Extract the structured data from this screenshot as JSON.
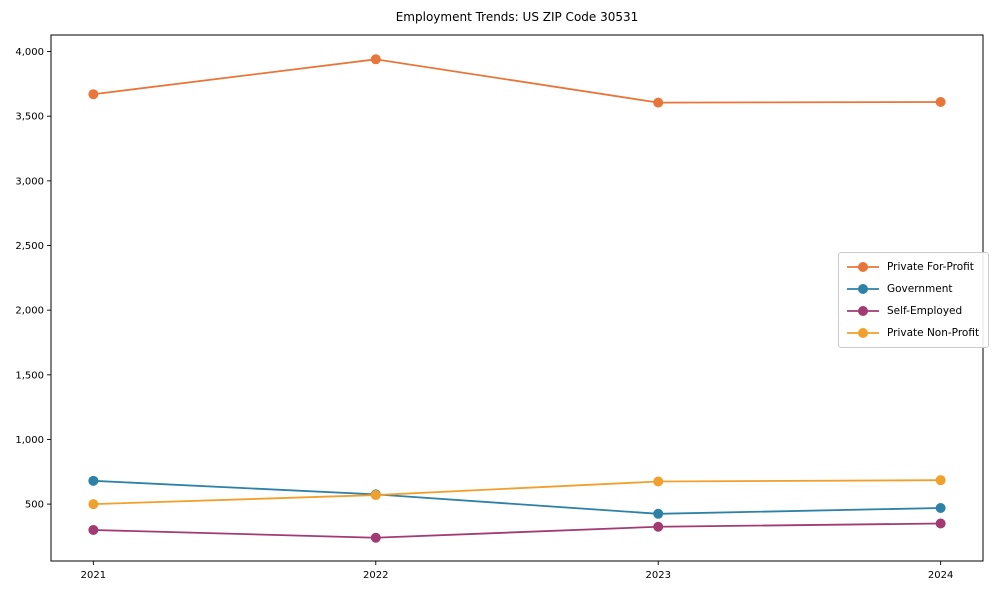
{
  "chart_data": {
    "type": "line",
    "title": "Employment Trends: US ZIP Code 30531",
    "x": [
      2021,
      2022,
      2023,
      2024
    ],
    "x_tick_labels": [
      "2021",
      "2022",
      "2023",
      "2024"
    ],
    "series": [
      {
        "name": "Private For-Profit",
        "color": "#E8763B",
        "values": [
          3670,
          3940,
          3605,
          3610
        ]
      },
      {
        "name": "Government",
        "color": "#2E81A6",
        "values": [
          680,
          575,
          425,
          470
        ]
      },
      {
        "name": "Self-Employed",
        "color": "#A23B72",
        "values": [
          300,
          240,
          325,
          350
        ]
      },
      {
        "name": "Private Non-Profit",
        "color": "#F0A02C",
        "values": [
          500,
          570,
          675,
          685
        ]
      }
    ],
    "xlim": [
      2020.85,
      2024.15
    ],
    "ylim": [
      60,
      4128
    ],
    "yticks": [
      500,
      1000,
      1500,
      2000,
      2500,
      3000,
      3500,
      4000
    ],
    "ytick_labels": [
      "500",
      "1,000",
      "1,500",
      "2,000",
      "2,500",
      "3,000",
      "3,500",
      "4,000"
    ],
    "xlabel": "",
    "ylabel": "",
    "grid": false,
    "legend_position": "center-right",
    "frame_color": "#000000",
    "background_color": "#ffffff"
  }
}
